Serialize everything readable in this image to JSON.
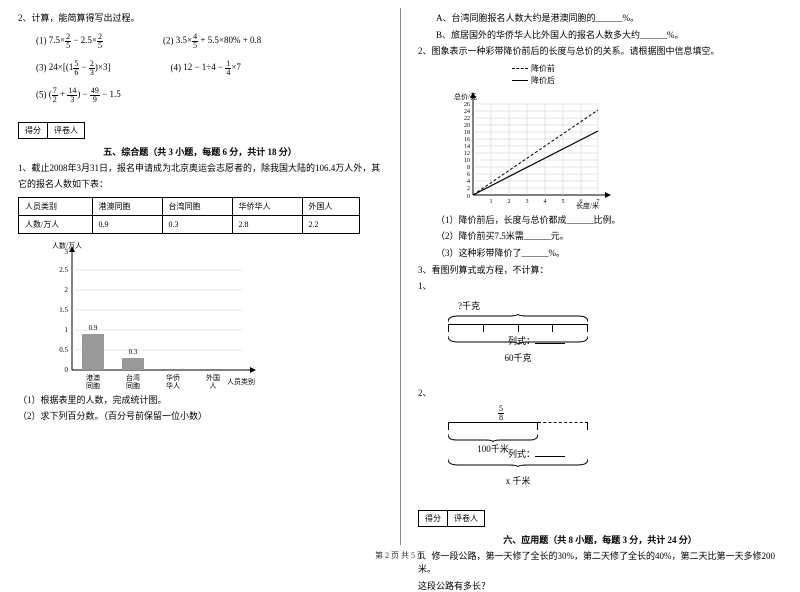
{
  "leftCol": {
    "q2_title": "2、计算，能简算得写出过程。",
    "formulas": {
      "f1_label": "(1)",
      "f1": "7.5×<span class='frac'><span class='n'>2</span><span class='d'>5</span></span> − 2.5×<span class='frac'><span class='n'>2</span><span class='d'>5</span></span>",
      "f2_label": "(2)",
      "f2": "3.5×<span class='frac'><span class='n'>4</span><span class='d'>5</span></span> + 5.5×80% + 0.8",
      "f3_label": "(3)",
      "f3": "24×[(1<span class='frac'><span class='n'>5</span><span class='d'>6</span></span> − <span class='frac'><span class='n'>2</span><span class='d'>3</span></span>)×3]",
      "f4_label": "(4)",
      "f4": "12 − 1÷4 − <span class='frac'><span class='n'>1</span><span class='d'>4</span></span>×7",
      "f5_label": "(5)",
      "f5": "(<span class='frac'><span class='n'>7</span><span class='d'>2</span></span> + <span class='frac'><span class='n'>14</span><span class='d'>3</span></span>) − <span class='frac'><span class='n'>49</span><span class='d'>9</span></span> − 1.5"
    },
    "score_labels": [
      "得分",
      "评卷人"
    ],
    "section5_title": "五、综合题（共 3 小题，每题 6 分，共计 18 分）",
    "q5_1_a": "1、截止2008年3月31日，报名申请成为北京奥运会志愿者的，除我国大陆的106.4万人外，其",
    "q5_1_b": "它的报名人数如下表：",
    "table": {
      "headers": [
        "人员类别",
        "港澳同胞",
        "台湾同胞",
        "华侨华人",
        "外国人"
      ],
      "row_label": "人数/万人",
      "row": [
        "0.9",
        "0.3",
        "2.8",
        "2.2"
      ]
    },
    "barChart": {
      "y_label": "人数/万人",
      "x_label": "人员类别",
      "y_ticks": [
        "0",
        "0.5",
        "1",
        "1.5",
        "2",
        "2.5",
        "3"
      ],
      "categories": [
        "港澳同胞",
        "台湾同胞",
        "华侨华人",
        "外国人"
      ],
      "bars": [
        {
          "value": 0.9,
          "label": "0.9",
          "color": "#999999"
        },
        {
          "value": 0.3,
          "label": "0.3",
          "color": "#999999"
        }
      ],
      "grid_color": "#cccccc",
      "axis_color": "#000000"
    },
    "q5_sub1": "（1）根据表里的人数，完成统计图。",
    "q5_sub2": "（2）求下列百分数。（百分号前保留一位小数）"
  },
  "rightCol": {
    "qA": "A、台湾同胞报名人数大约是港澳同胞的______%。",
    "qB": "B、旅居国外的华侨华人比外国人的报名人数多大约______%。",
    "q2": "2、图象表示一种彩带降价前后的长度与总价的关系。请根据图中信息填空。",
    "legend": {
      "before": "降价前",
      "after": "降价后"
    },
    "lineChart": {
      "y_label": "总价/元",
      "x_label": "长度/米",
      "x_ticks": [
        "0",
        "1",
        "2",
        "3",
        "4",
        "5",
        "6",
        "7"
      ],
      "y_ticks": [
        "0",
        "2",
        "4",
        "6",
        "8",
        "10",
        "12",
        "14",
        "16",
        "18",
        "20",
        "22",
        "24",
        "26",
        "28",
        "30"
      ],
      "before_series": [
        [
          0,
          0
        ],
        [
          1,
          4
        ],
        [
          2,
          8
        ],
        [
          3,
          12
        ],
        [
          4,
          16
        ],
        [
          5,
          20
        ],
        [
          6,
          24
        ],
        [
          7,
          28
        ]
      ],
      "after_series": [
        [
          0,
          0
        ],
        [
          1,
          3
        ],
        [
          2,
          6
        ],
        [
          3,
          9
        ],
        [
          4,
          12
        ],
        [
          5,
          15
        ],
        [
          6,
          18
        ],
        [
          7,
          21
        ]
      ],
      "grid_color": "#bbbbbb",
      "axis_color": "#000000",
      "before_style": "dashed",
      "after_style": "solid"
    },
    "q2_sub1": "（1）降价前后，长度与总价都成______比例。",
    "q2_sub2": "（2）降价前买7.5米需______元。",
    "q2_sub3": "（3）这种彩带降价了______%。",
    "q3": "3、看图列算式或方程，不计算：",
    "d1": {
      "top": "?千克",
      "bottom": "60千克",
      "lie": "列式：",
      "blank": "________"
    },
    "d2_label": "2、",
    "d2": {
      "top_frac_n": "5",
      "top_frac_d": "8",
      "mid": "100千米",
      "bottom": "x 千米",
      "lie": "列式：",
      "blank": "________"
    },
    "section6_title": "六、应用题（共 8 小题，每题 3 分，共计 24 分）",
    "q6_1a": "1、修一段公路，第一天修了全长的30%，第二天修了全长的40%，第二天比第一天多修200米。",
    "q6_1b": "这段公路有多长？"
  },
  "footer": "第 2 页 共 5 页"
}
